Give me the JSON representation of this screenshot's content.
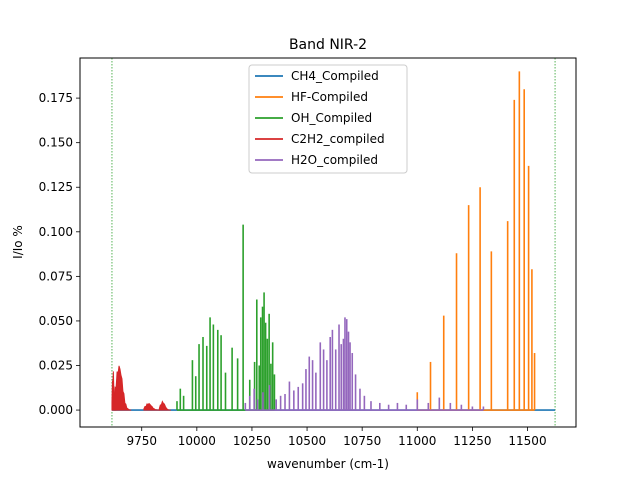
{
  "chart_data": {
    "type": "line",
    "title": "Band NIR-2",
    "xlabel": "wavenumber (cm-1)",
    "ylabel": "I/Io %",
    "xlim": [
      9470,
      11720
    ],
    "ylim": [
      -0.0095,
      0.1975
    ],
    "xticks": [
      9750,
      10000,
      10250,
      10500,
      10750,
      11000,
      11250,
      11500
    ],
    "yticks": [
      0.0,
      0.025,
      0.05,
      0.075,
      0.1,
      0.125,
      0.15,
      0.175
    ],
    "xtick_labels": [
      "9750",
      "10000",
      "10250",
      "10500",
      "10750",
      "11000",
      "11250",
      "11500"
    ],
    "ytick_labels": [
      "0.000",
      "0.025",
      "0.050",
      "0.075",
      "0.100",
      "0.125",
      "0.150",
      "0.175"
    ],
    "vlines": [
      9615,
      11625
    ],
    "vline_color": "#2ca02c",
    "legend": {
      "location": "upper-center",
      "entries": [
        "CH4_Compiled",
        "HF-Compiled",
        "OH_Compiled",
        "C2H2_compiled",
        "H2O_compiled"
      ]
    },
    "series": [
      {
        "name": "CH4_Compiled",
        "color": "#1f77b4",
        "kind": "flat",
        "range": [
          9615,
          11625
        ],
        "value": 0.0
      },
      {
        "name": "HF-Compiled",
        "color": "#ff7f0e",
        "kind": "sticks",
        "x": [
          11000,
          11060,
          11120,
          11178,
          11233,
          11285,
          11336,
          11410,
          11440,
          11463,
          11485,
          11505,
          11520,
          11532
        ],
        "values": [
          0.01,
          0.027,
          0.053,
          0.088,
          0.115,
          0.125,
          0.089,
          0.106,
          0.174,
          0.19,
          0.18,
          0.137,
          0.079,
          0.032
        ]
      },
      {
        "name": "OH_Compiled",
        "color": "#2ca02c",
        "kind": "sticks",
        "x": [
          9910,
          9925,
          9940,
          9980,
          9995,
          10010,
          10028,
          10045,
          10060,
          10075,
          10095,
          10110,
          10130,
          10160,
          10185,
          10210,
          10240,
          10262,
          10272,
          10283,
          10290,
          10298,
          10305,
          10312,
          10320,
          10328,
          10336,
          10344,
          10352
        ],
        "values": [
          0.005,
          0.012,
          0.008,
          0.028,
          0.019,
          0.037,
          0.041,
          0.036,
          0.052,
          0.048,
          0.045,
          0.042,
          0.021,
          0.035,
          0.029,
          0.104,
          0.017,
          0.027,
          0.062,
          0.025,
          0.052,
          0.058,
          0.066,
          0.049,
          0.04,
          0.054,
          0.026,
          0.038,
          0.02
        ]
      },
      {
        "name": "C2H2_compiled",
        "color": "#d62728",
        "kind": "bands",
        "bands": [
          {
            "x_start": 9615,
            "x_end": 9632,
            "peak": 0.024
          },
          {
            "x_start": 9625,
            "x_end": 9700,
            "peak": 0.027
          },
          {
            "x_start": 9760,
            "x_end": 9830,
            "peak": 0.004
          },
          {
            "x_start": 9830,
            "x_end": 9880,
            "peak": 0.005
          }
        ]
      },
      {
        "name": "H2O_compiled",
        "color": "#9467bd",
        "kind": "sticks",
        "x": [
          10220,
          10240,
          10260,
          10275,
          10300,
          10330,
          10360,
          10380,
          10400,
          10420,
          10440,
          10460,
          10480,
          10495,
          10510,
          10525,
          10540,
          10560,
          10575,
          10590,
          10605,
          10615,
          10630,
          10645,
          10655,
          10665,
          10672,
          10680,
          10688,
          10695,
          10705,
          10720,
          10740,
          10760,
          10790,
          10830,
          10870,
          10910,
          10950,
          11000,
          11050,
          11100,
          11150,
          11200,
          11250,
          11300
        ],
        "values": [
          0.004,
          0.008,
          0.012,
          0.006,
          0.01,
          0.014,
          0.006,
          0.008,
          0.009,
          0.016,
          0.011,
          0.013,
          0.015,
          0.023,
          0.03,
          0.028,
          0.021,
          0.038,
          0.034,
          0.028,
          0.041,
          0.045,
          0.034,
          0.048,
          0.037,
          0.04,
          0.052,
          0.051,
          0.044,
          0.038,
          0.032,
          0.02,
          0.012,
          0.008,
          0.005,
          0.004,
          0.003,
          0.004,
          0.003,
          0.006,
          0.004,
          0.007,
          0.004,
          0.003,
          0.002,
          0.002
        ]
      }
    ]
  }
}
